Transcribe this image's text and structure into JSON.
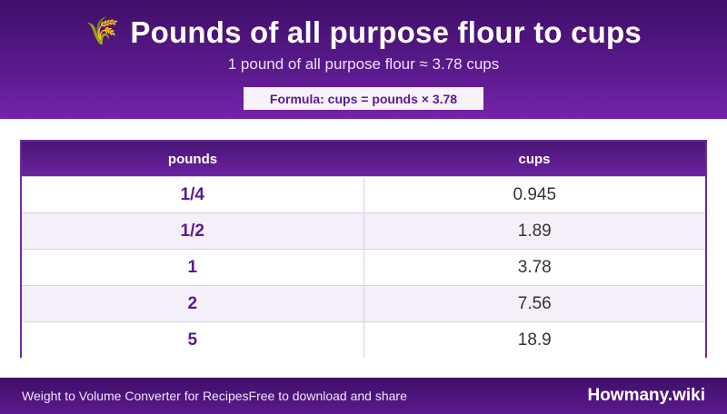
{
  "header": {
    "icon": "wheat-icon",
    "icon_glyph": "🌾",
    "title": "Pounds of all purpose flour to cups",
    "subtitle": "1 pound of all purpose flour ≈ 3.78 cups",
    "formula": "Formula: cups = pounds × 3.78"
  },
  "table": {
    "columns": [
      "pounds",
      "cups"
    ],
    "rows": [
      {
        "pounds": "1/4",
        "cups": "0.945"
      },
      {
        "pounds": "1/2",
        "cups": "1.89"
      },
      {
        "pounds": "1",
        "cups": "3.78"
      },
      {
        "pounds": "2",
        "cups": "7.56"
      },
      {
        "pounds": "5",
        "cups": "18.9"
      }
    ]
  },
  "footer": {
    "link_text": "Weight to Volume Converter for Recipes",
    "tagline": "Free to download and share",
    "brand": "Howmany.wiki"
  },
  "colors": {
    "brand_purple": "#5b1a8e",
    "header_dark": "#3f0f68"
  }
}
